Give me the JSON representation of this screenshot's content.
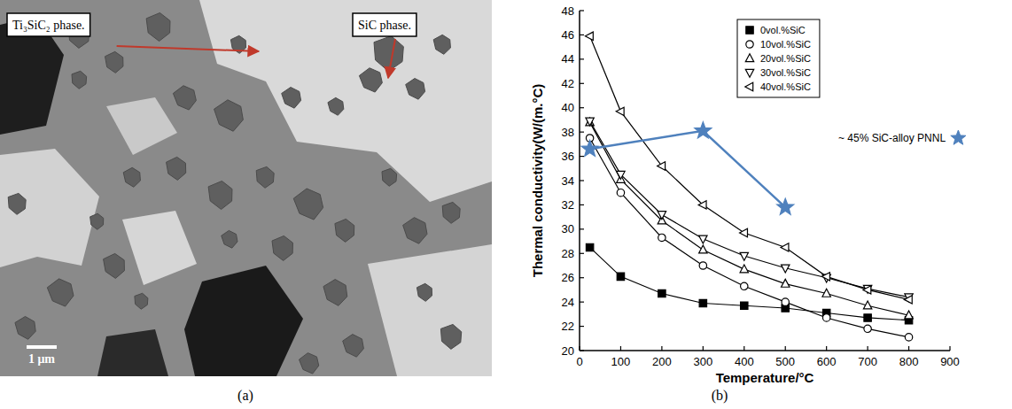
{
  "micrograph": {
    "labels": [
      "Ti₃SiC₂ phase.",
      "SiC phase."
    ],
    "scale_bar": "1 μm",
    "caption": "(a)"
  },
  "chart_data": {
    "type": "line",
    "caption": "(b)",
    "x_label": "Temperature/°C",
    "y_label": "Thermal conductivity(W/(m.°C)",
    "x": [
      25,
      100,
      200,
      300,
      400,
      500,
      600,
      700,
      800
    ],
    "series": [
      {
        "name": "0vol.%SiC",
        "color": "#000000",
        "marker": "square-filled",
        "line_style": "solid",
        "values": [
          28.5,
          26.1,
          24.7,
          23.9,
          23.7,
          23.5,
          23.1,
          22.7,
          22.5
        ]
      },
      {
        "name": "10vol.%SiC",
        "color": "#000000",
        "marker": "circle",
        "line_style": "solid",
        "values": [
          37.5,
          33.0,
          29.3,
          27.0,
          25.3,
          24.0,
          22.7,
          21.8,
          21.1
        ]
      },
      {
        "name": "20vol.%SiC",
        "color": "#000000",
        "marker": "triangle-up",
        "line_style": "solid",
        "values": [
          38.8,
          34.1,
          30.7,
          28.3,
          26.7,
          25.5,
          24.7,
          23.7,
          22.9
        ]
      },
      {
        "name": "30vol.%SiC",
        "color": "#000000",
        "marker": "triangle-down",
        "line_style": "solid",
        "values": [
          38.9,
          34.5,
          31.2,
          29.2,
          27.8,
          26.8,
          26.0,
          25.1,
          24.4
        ]
      },
      {
        "name": "40vol.%SiC",
        "color": "#000000",
        "marker": "triangle-left",
        "line_style": "solid",
        "values": [
          45.9,
          39.7,
          35.2,
          32.0,
          29.7,
          28.5,
          26.1,
          25.0,
          24.2
        ]
      }
    ],
    "annotations": [
      {
        "text": "~ 45% SiC-alloy PNNL",
        "color": "#4f81bd",
        "marker": "star",
        "line_style": "solid",
        "x": [
          25,
          300,
          500
        ],
        "values": [
          36.6,
          38.1,
          31.8
        ]
      }
    ],
    "xlim": [
      0,
      900
    ],
    "xticks": [
      0,
      100,
      200,
      300,
      400,
      500,
      600,
      700,
      800,
      900
    ],
    "ylim": [
      20,
      48
    ],
    "yticks": [
      20,
      22,
      24,
      26,
      28,
      30,
      32,
      34,
      36,
      38,
      40,
      42,
      44,
      46,
      48
    ],
    "legend": "upper right",
    "grid": false
  }
}
